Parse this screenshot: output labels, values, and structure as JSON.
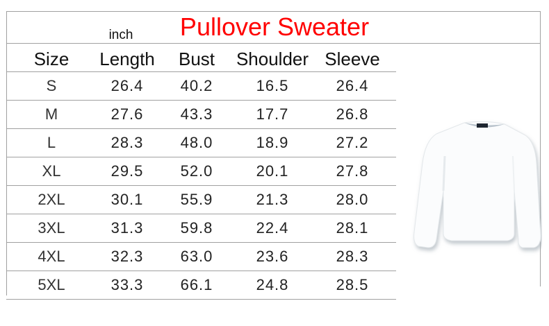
{
  "title": "Pullover Sweater",
  "unit": "inch",
  "columns": [
    "Size",
    "Length",
    "Bust",
    "Shoulder",
    "Sleeve"
  ],
  "rows": [
    [
      "S",
      "26.4",
      "40.2",
      "16.5",
      "26.4"
    ],
    [
      "M",
      "27.6",
      "43.3",
      "17.7",
      "26.8"
    ],
    [
      "L",
      "28.3",
      "48.0",
      "18.9",
      "27.2"
    ],
    [
      "XL",
      "29.5",
      "52.0",
      "20.1",
      "27.8"
    ],
    [
      "2XL",
      "30.1",
      "55.9",
      "21.3",
      "28.0"
    ],
    [
      "3XL",
      "31.3",
      "59.8",
      "22.4",
      "28.1"
    ],
    [
      "4XL",
      "32.3",
      "63.0",
      "23.6",
      "28.3"
    ],
    [
      "5XL",
      "33.3",
      "66.1",
      "24.8",
      "28.5"
    ]
  ],
  "image": "white-pullover-sweater",
  "colors": {
    "title": "#ff0000",
    "lines": "#a0a0a0"
  }
}
